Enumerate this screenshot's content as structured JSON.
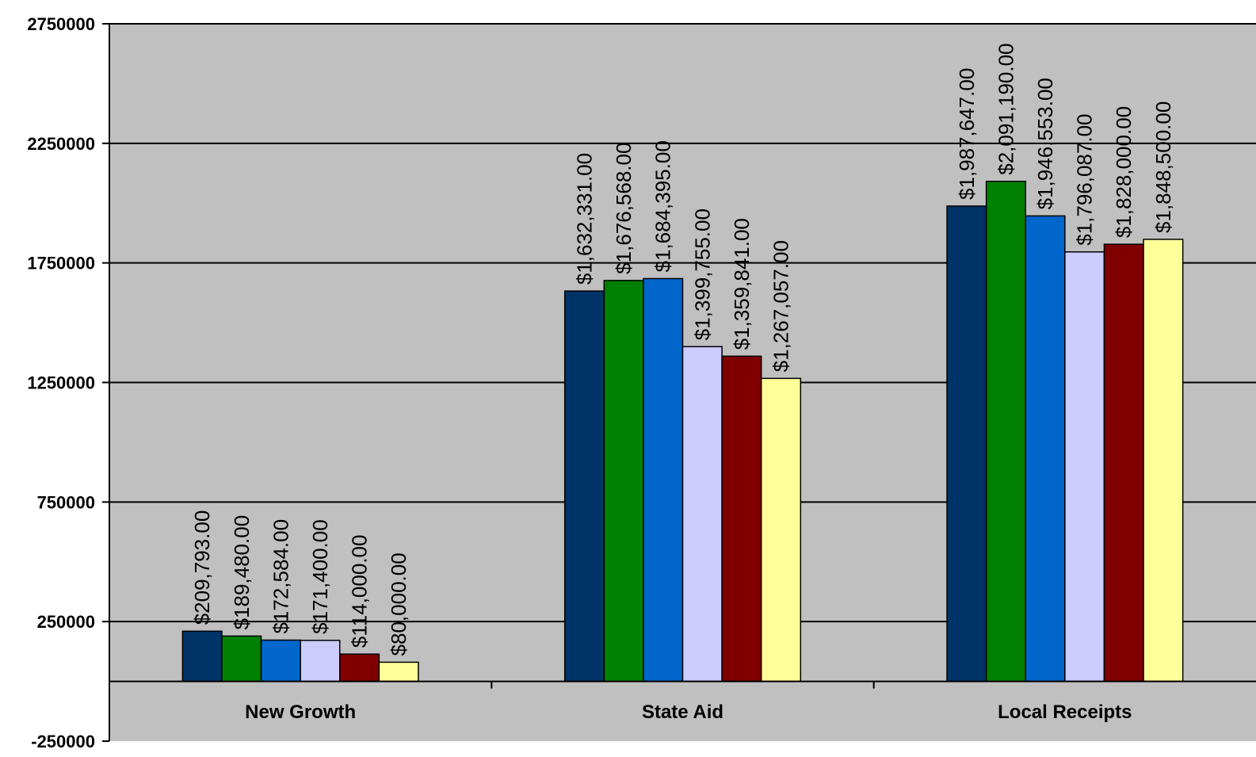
{
  "chart_data": {
    "type": "bar",
    "title": "",
    "xlabel": "",
    "ylabel": "",
    "categories": [
      "New Growth",
      "State Aid",
      "Local Receipts"
    ],
    "ylim": [
      -250000,
      2750000
    ],
    "yticks": [
      -250000,
      250000,
      750000,
      1250000,
      1750000,
      2250000,
      2750000
    ],
    "ytick_labels": [
      "-250000",
      "250000",
      "750000",
      "1250000",
      "1750000",
      "2250000",
      "2750000"
    ],
    "grid": true,
    "legend": "none",
    "plot_background": "#c0c0c0",
    "series": [
      {
        "color": "#003366",
        "values": [
          209793,
          1632331,
          1987647
        ],
        "labels": [
          "$209,793.00",
          "$1,632,331.00",
          "$1,987,647.00"
        ]
      },
      {
        "color": "#008000",
        "values": [
          189480,
          1676568,
          2091190
        ],
        "labels": [
          "$189,480.00",
          "$1,676,568.00",
          "$2,091,190.00"
        ]
      },
      {
        "color": "#0066cc",
        "values": [
          172584,
          1684395,
          1946553
        ],
        "labels": [
          "$172,584.00",
          "$1,684,395.00",
          "$1,946,553.00"
        ]
      },
      {
        "color": "#ccccff",
        "values": [
          171400,
          1399755,
          1796087
        ],
        "labels": [
          "$171,400.00",
          "$1,399,755.00",
          "$1,796,087.00"
        ]
      },
      {
        "color": "#800000",
        "values": [
          114000,
          1359841,
          1828000
        ],
        "labels": [
          "$114,000.00",
          "$1,359,841.00",
          "$1,828,000.00"
        ]
      },
      {
        "color": "#ffff99",
        "values": [
          80000,
          1267057,
          1848500
        ],
        "labels": [
          "$80,000.00",
          "$1,267,057.00",
          "$1,848,500.00"
        ]
      }
    ]
  }
}
